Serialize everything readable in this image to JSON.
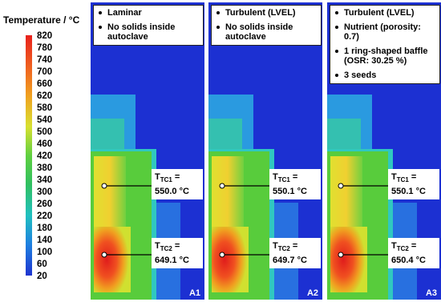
{
  "colorbar": {
    "title": "Temperature / °C",
    "ticks": [
      820,
      780,
      740,
      700,
      660,
      620,
      580,
      540,
      500,
      460,
      420,
      380,
      340,
      300,
      260,
      220,
      180,
      140,
      100,
      60,
      20
    ]
  },
  "panels": [
    {
      "id": "A1",
      "notes": [
        "Laminar",
        "No solids inside autoclave"
      ],
      "tc1": {
        "symbol": "T",
        "sub": "TC1",
        "eq": "=",
        "value": "550.0 °C"
      },
      "tc2": {
        "symbol": "T",
        "sub": "TC2",
        "eq": "=",
        "value": "649.1 °C"
      }
    },
    {
      "id": "A2",
      "notes": [
        "Turbulent (LVEL)",
        "No solids inside autoclave"
      ],
      "tc1": {
        "symbol": "T",
        "sub": "TC1",
        "eq": "=",
        "value": "550.1 °C"
      },
      "tc2": {
        "symbol": "T",
        "sub": "TC2",
        "eq": "=",
        "value": "649.7 °C"
      }
    },
    {
      "id": "A3",
      "notes": [
        "Turbulent (LVEL)",
        "Nutrient (porosity: 0.7)",
        "1 ring-shaped baffle (OSR: 30.25 %)",
        "3 seeds"
      ],
      "tc1": {
        "symbol": "T",
        "sub": "TC1",
        "eq": "=",
        "value": "550.1 °C"
      },
      "tc2": {
        "symbol": "T",
        "sub": "TC2",
        "eq": "=",
        "value": "650.4 °C"
      }
    }
  ]
}
